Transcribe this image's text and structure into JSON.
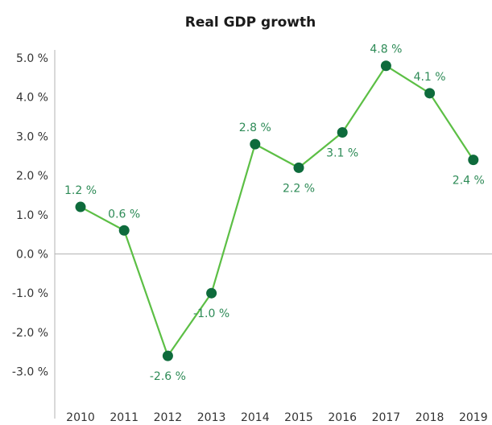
{
  "chart_data": {
    "type": "line",
    "title": "Real GDP growth",
    "xlabel": "",
    "ylabel": "",
    "categories": [
      "2010",
      "2011",
      "2012",
      "2013",
      "2014",
      "2015",
      "2016",
      "2017",
      "2018",
      "2019"
    ],
    "series": [
      {
        "values": [
          1.2,
          0.6,
          -2.6,
          -1.0,
          2.8,
          2.2,
          3.1,
          4.8,
          4.1,
          2.4
        ],
        "data_labels": [
          "1.2 %",
          "0.6 %",
          "-2.6 %",
          "-1.0 %",
          "2.8 %",
          "2.2 %",
          "3.1 %",
          "4.8 %",
          "4.1 %",
          "2.4 %"
        ]
      }
    ],
    "y_ticks": [
      "5.0 %",
      "4.0 %",
      "3.0 %",
      "2.0 %",
      "1.0 %",
      "0.0 %",
      "-1.0 %",
      "-2.0 %",
      "-3.0 %"
    ],
    "ylim": [
      -4.0,
      5.0
    ],
    "grid": false,
    "legend": "none",
    "colors": {
      "line": "#5cbf45",
      "marker": "#0e6b3c",
      "label": "#2e8b57",
      "axis": "#b3b3b3"
    }
  }
}
